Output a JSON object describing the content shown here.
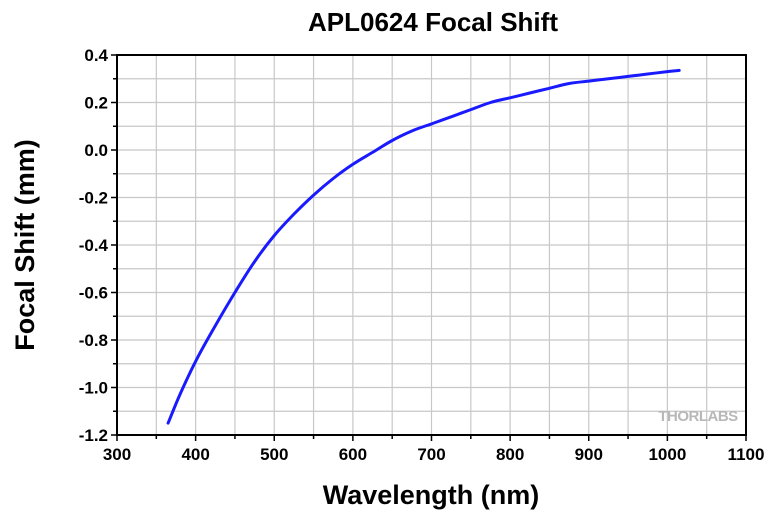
{
  "chart_data": {
    "type": "line",
    "title": "APL0624 Focal Shift",
    "xlabel": "Wavelength (nm)",
    "ylabel": "Focal Shift (mm)",
    "xlim": [
      300,
      1100
    ],
    "ylim": [
      -1.2,
      0.4
    ],
    "xticks": [
      300,
      400,
      500,
      600,
      700,
      800,
      900,
      1000,
      1100
    ],
    "yticks": [
      -1.2,
      -1.0,
      -0.8,
      -0.6,
      -0.4,
      -0.2,
      0.0,
      0.2,
      0.4
    ],
    "ytick_labels": [
      "-1.2",
      "-1.0",
      "-0.8",
      "-0.6",
      "-0.4",
      "-0.2",
      "0.0",
      "0.2",
      "0.4"
    ],
    "grid": true,
    "series": [
      {
        "name": "Focal Shift",
        "color": "#1a1aff",
        "x": [
          365,
          380,
          400,
          425,
          450,
          475,
          500,
          525,
          550,
          575,
          600,
          625,
          650,
          675,
          700,
          725,
          750,
          775,
          800,
          825,
          850,
          875,
          900,
          925,
          950,
          975,
          1000,
          1015
        ],
        "y": [
          -1.15,
          -1.03,
          -0.89,
          -0.74,
          -0.6,
          -0.47,
          -0.36,
          -0.27,
          -0.19,
          -0.12,
          -0.06,
          -0.01,
          0.04,
          0.08,
          0.11,
          0.14,
          0.17,
          0.2,
          0.22,
          0.24,
          0.26,
          0.28,
          0.29,
          0.3,
          0.31,
          0.32,
          0.33,
          0.335
        ]
      }
    ]
  },
  "watermark": "THORLABS"
}
